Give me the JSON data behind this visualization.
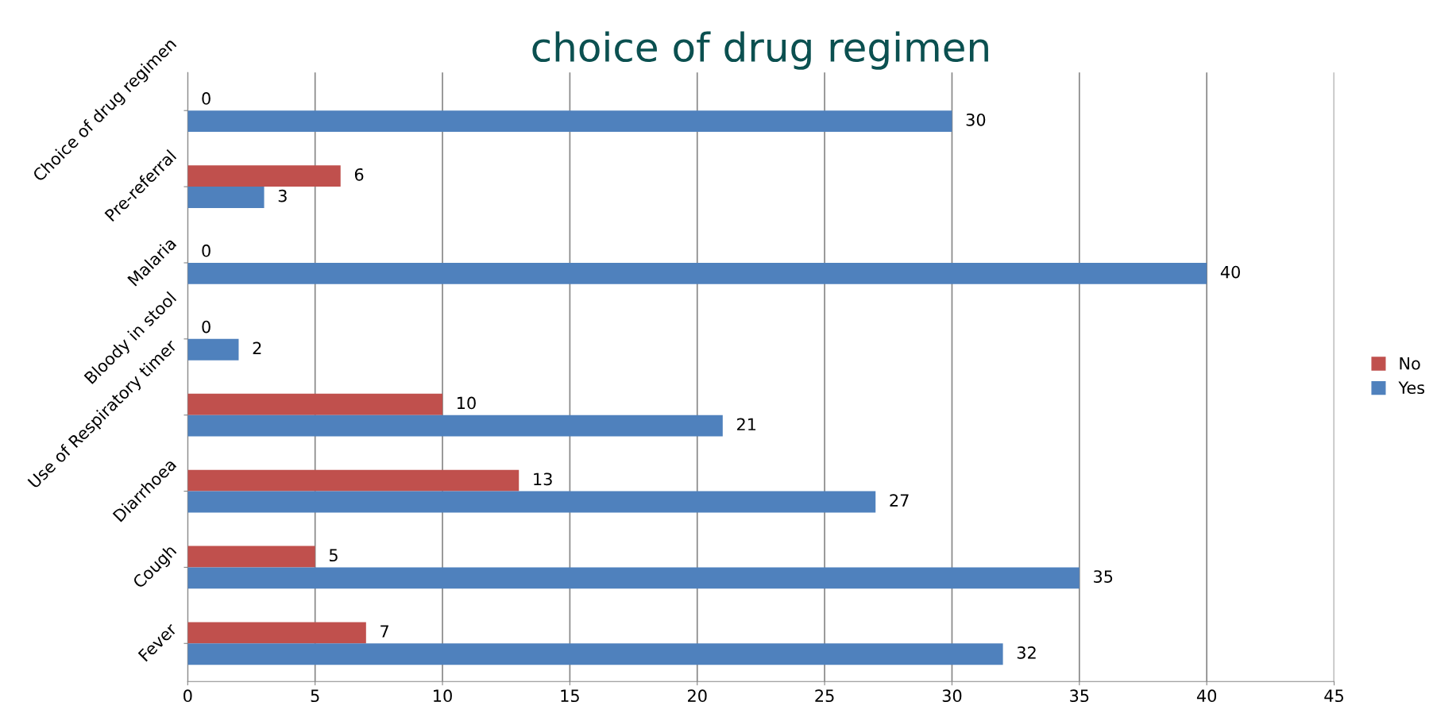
{
  "chart_data": {
    "type": "bar",
    "orientation": "horizontal",
    "title": "choice of drug regimen",
    "categories": [
      "Choice of drug regimen",
      "Pre-referral",
      "Malaria",
      "Bloody in stool",
      "Use of Respiratory timer",
      "Diarrhoea",
      "Cough",
      "Fever"
    ],
    "series": [
      {
        "name": "No",
        "color": "#c0504d",
        "values": [
          0,
          6,
          0,
          0,
          10,
          13,
          5,
          7
        ]
      },
      {
        "name": "Yes",
        "color": "#4f81bd",
        "values": [
          30,
          3,
          40,
          2,
          21,
          27,
          35,
          32
        ]
      }
    ],
    "xlim": [
      0,
      45
    ],
    "xticks": [
      0,
      5,
      10,
      15,
      20,
      25,
      30,
      35,
      40,
      45
    ],
    "grid": "x",
    "legend": "right",
    "data_labels": true
  }
}
